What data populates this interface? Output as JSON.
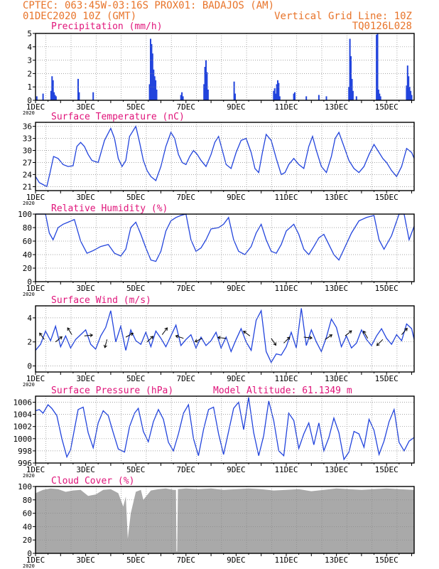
{
  "header": {
    "line1": "CPTEC:   063:45W-03:16S   PROX01: BADAJOS (AM)",
    "date": "01DEC2020 10Z (GMT)",
    "grid_note": "Vertical Grid Line: 10Z",
    "code": "TQ0126L028",
    "model_altitude": "Model Altitude: 61.1349 m"
  },
  "colors": {
    "header": "#e8742a",
    "title": "#e0147a",
    "series": "#2244dd",
    "cloud": "#a9a9a9",
    "grid": "#888888"
  },
  "chart_data": [
    {
      "type": "bar",
      "title": "Precipitation (mm/h)",
      "x_tick_labels": [
        "1DEC",
        "3DEC",
        "5DEC",
        "7DEC",
        "9DEC",
        "11DEC",
        "13DEC",
        "15DEC"
      ],
      "x_range_days": [
        1,
        16.1
      ],
      "year_label": "2020",
      "ylim": [
        0,
        5
      ],
      "yticks": [
        0,
        1,
        2,
        3,
        4,
        5
      ],
      "grid": true,
      "x_day": [
        1.05,
        1.3,
        1.62,
        1.66,
        1.7,
        1.74,
        1.78,
        1.82,
        2.7,
        2.74,
        3.3,
        5.55,
        5.59,
        5.63,
        5.67,
        5.71,
        5.75,
        5.79,
        5.83,
        6.8,
        6.84,
        6.88,
        7.72,
        7.76,
        7.8,
        7.84,
        7.88,
        8.92,
        8.96,
        10.5,
        10.54,
        10.58,
        10.62,
        10.66,
        10.7,
        10.74,
        11.3,
        11.34,
        11.8,
        12.3,
        12.6,
        13.5,
        13.54,
        13.58,
        13.62,
        13.66,
        13.8,
        14.6,
        14.64,
        14.68,
        14.72,
        14.76,
        15.8,
        15.84,
        15.88,
        15.92,
        15.96,
        16.0
      ],
      "values": [
        0.3,
        0.5,
        0.7,
        1.8,
        1.5,
        0.6,
        0.4,
        0.3,
        1.6,
        0.6,
        0.6,
        1.2,
        4.6,
        4.2,
        3.5,
        2.3,
        1.8,
        1.5,
        0.8,
        0.4,
        0.6,
        0.3,
        1.2,
        2.5,
        3.0,
        2.1,
        0.8,
        1.4,
        0.5,
        0.7,
        0.9,
        0.5,
        1.2,
        1.5,
        1.3,
        0.3,
        0.5,
        0.6,
        0.3,
        0.4,
        0.3,
        1.0,
        4.6,
        3.3,
        1.6,
        0.7,
        0.3,
        4.9,
        5.0,
        0.8,
        0.5,
        0.3,
        1.1,
        2.6,
        1.8,
        1.0,
        0.7,
        0.4
      ]
    },
    {
      "type": "line",
      "title": "Surface Temperature (nC)",
      "x_tick_labels": [
        "1DEC",
        "3DEC",
        "5DEC",
        "7DEC",
        "9DEC",
        "11DEC",
        "13DEC",
        "15DEC"
      ],
      "year_label": "2020",
      "ylim": [
        20,
        37
      ],
      "yticks": [
        21,
        24,
        27,
        30,
        33,
        36
      ],
      "grid": true,
      "x_day": [
        1.0,
        1.15,
        1.3,
        1.45,
        1.58,
        1.72,
        1.9,
        2.1,
        2.3,
        2.5,
        2.65,
        2.8,
        2.95,
        3.1,
        3.25,
        3.5,
        3.75,
        4.0,
        4.15,
        4.3,
        4.45,
        4.6,
        4.75,
        5.0,
        5.15,
        5.3,
        5.45,
        5.6,
        5.8,
        6.0,
        6.2,
        6.4,
        6.55,
        6.7,
        6.85,
        7.0,
        7.15,
        7.3,
        7.45,
        7.6,
        7.8,
        8.0,
        8.15,
        8.3,
        8.45,
        8.6,
        8.8,
        9.0,
        9.2,
        9.4,
        9.6,
        9.75,
        9.9,
        10.05,
        10.2,
        10.4,
        10.6,
        10.8,
        10.95,
        11.1,
        11.3,
        11.5,
        11.7,
        11.9,
        12.05,
        12.2,
        12.4,
        12.6,
        12.8,
        12.95,
        13.1,
        13.3,
        13.5,
        13.7,
        13.9,
        14.1,
        14.3,
        14.5,
        14.7,
        14.85,
        15.0,
        15.2,
        15.4,
        15.6,
        15.8,
        16.0,
        16.1
      ],
      "values": [
        23.5,
        22.0,
        21.5,
        21.0,
        24.5,
        28.5,
        28.0,
        26.5,
        26.0,
        26.2,
        31.0,
        32.0,
        31.0,
        29.0,
        27.5,
        27.0,
        32.5,
        35.5,
        33.0,
        28.0,
        26.0,
        27.5,
        33.5,
        36.0,
        32.0,
        27.5,
        25.0,
        23.5,
        22.5,
        26.0,
        31.0,
        34.5,
        33.0,
        29.0,
        27.0,
        26.5,
        28.5,
        30.0,
        29.0,
        27.5,
        26.0,
        29.0,
        32.0,
        33.5,
        30.0,
        26.5,
        25.5,
        29.5,
        32.5,
        33.0,
        29.5,
        25.5,
        24.5,
        29.5,
        34.0,
        32.5,
        28.0,
        24.0,
        24.5,
        26.5,
        28.0,
        26.5,
        25.5,
        31.0,
        33.5,
        30.0,
        26.0,
        24.5,
        28.5,
        33.0,
        34.5,
        31.0,
        27.5,
        25.5,
        24.5,
        26.0,
        29.0,
        31.5,
        29.5,
        28.0,
        27.0,
        25.0,
        23.5,
        26.0,
        30.5,
        29.5,
        28.0
      ]
    },
    {
      "type": "line",
      "title": "Relative Humidity (%)",
      "x_tick_labels": [
        "1DEC",
        "3DEC",
        "5DEC",
        "7DEC",
        "9DEC",
        "11DEC",
        "13DEC",
        "15DEC"
      ],
      "year_label": "2020",
      "ylim": [
        0,
        100
      ],
      "yticks": [
        0,
        20,
        40,
        60,
        80,
        100
      ],
      "grid": true,
      "x_day": [
        1.0,
        1.4,
        1.55,
        1.7,
        1.9,
        2.1,
        2.3,
        2.55,
        2.8,
        3.05,
        3.3,
        3.6,
        3.9,
        4.15,
        4.4,
        4.6,
        4.8,
        5.0,
        5.2,
        5.4,
        5.6,
        5.8,
        6.0,
        6.2,
        6.4,
        6.6,
        6.8,
        7.0,
        7.2,
        7.4,
        7.6,
        7.8,
        8.0,
        8.3,
        8.5,
        8.7,
        8.9,
        9.1,
        9.35,
        9.6,
        9.8,
        10.0,
        10.2,
        10.4,
        10.6,
        10.8,
        11.0,
        11.3,
        11.5,
        11.7,
        11.9,
        12.1,
        12.3,
        12.5,
        12.7,
        12.9,
        13.1,
        13.3,
        13.6,
        13.9,
        14.2,
        14.5,
        14.7,
        14.9,
        15.2,
        15.5,
        15.7,
        15.9,
        16.1
      ],
      "values": [
        100,
        100,
        72,
        62,
        80,
        85,
        88,
        92,
        60,
        42,
        46,
        52,
        55,
        42,
        38,
        48,
        80,
        88,
        70,
        50,
        32,
        30,
        45,
        75,
        90,
        95,
        98,
        100,
        62,
        45,
        50,
        62,
        78,
        80,
        85,
        95,
        62,
        45,
        40,
        52,
        72,
        85,
        62,
        45,
        42,
        55,
        75,
        85,
        70,
        48,
        40,
        52,
        65,
        70,
        55,
        40,
        32,
        48,
        72,
        90,
        95,
        98,
        62,
        48,
        68,
        100,
        100,
        62,
        82
      ]
    },
    {
      "type": "line",
      "title": "Surface Wind (m/s)",
      "x_tick_labels": [
        "1DEC",
        "3DEC",
        "5DEC",
        "7DEC",
        "9DEC",
        "11DEC",
        "13DEC",
        "15DEC"
      ],
      "year_label": "2020",
      "ylim": [
        -0.5,
        5
      ],
      "yticks": [
        0,
        2,
        4
      ],
      "grid": true,
      "x_day": [
        1.0,
        1.2,
        1.4,
        1.6,
        1.8,
        2.0,
        2.2,
        2.4,
        2.6,
        2.8,
        3.0,
        3.2,
        3.4,
        3.6,
        3.8,
        4.0,
        4.2,
        4.4,
        4.6,
        4.8,
        5.0,
        5.2,
        5.4,
        5.6,
        5.8,
        6.0,
        6.2,
        6.4,
        6.6,
        6.8,
        7.0,
        7.2,
        7.4,
        7.6,
        7.8,
        8.0,
        8.2,
        8.4,
        8.6,
        8.8,
        9.0,
        9.2,
        9.4,
        9.6,
        9.8,
        10.0,
        10.2,
        10.4,
        10.6,
        10.8,
        11.0,
        11.2,
        11.4,
        11.6,
        11.8,
        12.0,
        12.2,
        12.4,
        12.6,
        12.8,
        13.0,
        13.2,
        13.4,
        13.6,
        13.8,
        14.0,
        14.2,
        14.4,
        14.6,
        14.8,
        15.0,
        15.2,
        15.4,
        15.6,
        15.8,
        16.0,
        16.1
      ],
      "values": [
        1.3,
        1.8,
        2.9,
        2.1,
        3.3,
        1.6,
        2.5,
        1.5,
        2.2,
        2.6,
        3.0,
        1.8,
        1.4,
        2.5,
        3.2,
        4.6,
        2.0,
        3.3,
        1.3,
        3.0,
        2.1,
        1.8,
        2.8,
        1.6,
        2.9,
        2.3,
        1.6,
        2.5,
        3.4,
        1.7,
        2.2,
        2.6,
        1.5,
        2.4,
        1.7,
        2.1,
        2.8,
        1.5,
        2.4,
        1.2,
        2.2,
        3.1,
        2.0,
        1.3,
        3.8,
        4.6,
        1.2,
        0.3,
        1.0,
        0.9,
        1.6,
        2.8,
        1.5,
        4.8,
        1.7,
        3.0,
        2.0,
        1.2,
        2.4,
        3.9,
        3.2,
        1.6,
        2.5,
        1.5,
        1.9,
        3.0,
        2.2,
        1.7,
        2.5,
        3.1,
        2.3,
        1.8,
        2.6,
        2.1,
        3.5,
        3.1,
        2.2
      ],
      "arrows": [
        {
          "day": 1.35,
          "speed": 2.2,
          "dx": -0.55,
          "dy": 0.75
        },
        {
          "day": 1.8,
          "speed": 2.0,
          "dx": 0.75,
          "dy": 0.6
        },
        {
          "day": 2.45,
          "speed": 2.6,
          "dx": -0.5,
          "dy": 0.8
        },
        {
          "day": 2.95,
          "speed": 2.5,
          "dx": 0.95,
          "dy": 0.1
        },
        {
          "day": 3.85,
          "speed": 2.2,
          "dx": -0.25,
          "dy": -0.95
        },
        {
          "day": 4.6,
          "speed": 2.4,
          "dx": 0.85,
          "dy": 0.45
        },
        {
          "day": 5.45,
          "speed": 2.0,
          "dx": 0.7,
          "dy": 0.65
        },
        {
          "day": 6.05,
          "speed": 2.6,
          "dx": 0.6,
          "dy": 0.8
        },
        {
          "day": 6.9,
          "speed": 2.3,
          "dx": -0.9,
          "dy": 0.3
        },
        {
          "day": 7.65,
          "speed": 2.3,
          "dx": -0.85,
          "dy": -0.4
        },
        {
          "day": 8.6,
          "speed": 2.3,
          "dx": -0.95,
          "dy": 0.1
        },
        {
          "day": 9.55,
          "speed": 2.5,
          "dx": -0.75,
          "dy": 0.55
        },
        {
          "day": 10.4,
          "speed": 2.3,
          "dx": 0.55,
          "dy": -0.8
        },
        {
          "day": 10.9,
          "speed": 1.9,
          "dx": 0.7,
          "dy": 0.7
        },
        {
          "day": 11.7,
          "speed": 2.4,
          "dx": 0.95,
          "dy": -0.1
        },
        {
          "day": 12.55,
          "speed": 2.2,
          "dx": 0.8,
          "dy": 0.55
        },
        {
          "day": 13.35,
          "speed": 2.5,
          "dx": 0.75,
          "dy": 0.6
        },
        {
          "day": 14.25,
          "speed": 2.3,
          "dx": -0.5,
          "dy": 0.85
        },
        {
          "day": 14.85,
          "speed": 2.2,
          "dx": -0.7,
          "dy": -0.7
        },
        {
          "day": 15.6,
          "speed": 2.6,
          "dx": 0.65,
          "dy": 0.75
        }
      ]
    },
    {
      "type": "line",
      "title": "Surface Pressure (hPa)",
      "x_tick_labels": [
        "1DEC",
        "3DEC",
        "5DEC",
        "7DEC",
        "9DEC",
        "11DEC",
        "13DEC",
        "15DEC"
      ],
      "year_label": "2020",
      "ylim": [
        996,
        1007
      ],
      "yticks": [
        996,
        998,
        1000,
        1002,
        1004,
        1006
      ],
      "grid": true,
      "x_day": [
        1.0,
        1.15,
        1.3,
        1.5,
        1.65,
        1.85,
        2.05,
        2.25,
        2.4,
        2.55,
        2.7,
        2.9,
        3.1,
        3.3,
        3.5,
        3.7,
        3.9,
        4.1,
        4.3,
        4.55,
        4.75,
        4.95,
        5.1,
        5.3,
        5.5,
        5.7,
        5.9,
        6.1,
        6.3,
        6.5,
        6.7,
        6.9,
        7.1,
        7.3,
        7.5,
        7.7,
        7.9,
        8.1,
        8.3,
        8.5,
        8.7,
        8.9,
        9.1,
        9.3,
        9.5,
        9.7,
        9.9,
        10.1,
        10.3,
        10.5,
        10.7,
        10.9,
        11.1,
        11.3,
        11.5,
        11.7,
        11.9,
        12.1,
        12.3,
        12.5,
        12.7,
        12.9,
        13.1,
        13.3,
        13.5,
        13.7,
        13.9,
        14.1,
        14.3,
        14.5,
        14.7,
        14.9,
        15.1,
        15.3,
        15.5,
        15.7,
        15.9,
        16.1
      ],
      "values": [
        1004.6,
        1004.8,
        1004.2,
        1005.6,
        1005.0,
        1003.8,
        1000.0,
        997.0,
        998.2,
        1001.5,
        1004.8,
        1005.2,
        1001.0,
        998.5,
        1002.6,
        1004.6,
        1003.8,
        1001.0,
        998.3,
        997.8,
        1002.0,
        1004.2,
        1005.0,
        1001.2,
        999.5,
        1002.8,
        1004.8,
        1003.2,
        999.4,
        998.0,
        1000.8,
        1004.2,
        1005.6,
        1000.0,
        997.2,
        1001.5,
        1004.8,
        1005.2,
        1000.8,
        997.4,
        1001.2,
        1005.0,
        1006.0,
        1001.5,
        1006.8,
        1001.0,
        997.2,
        1000.5,
        1006.2,
        1003.0,
        998.0,
        997.2,
        1004.2,
        1003.0,
        998.4,
        1000.8,
        1002.6,
        999.0,
        1002.6,
        998.0,
        1000.2,
        1003.4,
        1001.0,
        996.6,
        997.8,
        1001.2,
        1000.8,
        998.6,
        1003.2,
        1001.4,
        997.4,
        999.6,
        1002.8,
        1004.8,
        999.4,
        998.0,
        999.6,
        1000.2
      ]
    },
    {
      "type": "area",
      "title": "Cloud Cover (%)",
      "x_tick_labels": [
        "1DEC",
        "3DEC",
        "5DEC",
        "7DEC",
        "9DEC",
        "11DEC",
        "13DEC",
        "15DEC"
      ],
      "year_label": "2020",
      "ylim": [
        0,
        100
      ],
      "yticks": [
        0,
        20,
        40,
        60,
        80,
        100
      ],
      "grid": true,
      "x_day": [
        1.0,
        1.3,
        1.6,
        1.9,
        2.2,
        2.5,
        2.8,
        3.1,
        3.4,
        3.7,
        4.0,
        4.3,
        4.5,
        4.6,
        4.68,
        4.8,
        5.0,
        5.2,
        5.3,
        5.6,
        5.9,
        6.2,
        6.5,
        6.6,
        6.62,
        6.65,
        6.68,
        7.0,
        7.5,
        8.0,
        8.5,
        9.0,
        9.5,
        10.0,
        10.5,
        11.0,
        11.5,
        12.0,
        12.5,
        13.0,
        13.5,
        14.0,
        14.5,
        15.0,
        15.5,
        16.1
      ],
      "values": [
        90,
        95,
        97,
        96,
        92,
        94,
        95,
        86,
        88,
        95,
        96,
        90,
        70,
        85,
        22,
        60,
        92,
        95,
        80,
        94,
        96,
        97,
        95,
        95,
        3,
        3,
        96,
        97,
        96,
        97,
        95,
        96,
        97,
        96,
        94,
        95,
        96,
        93,
        95,
        97,
        96,
        95,
        96,
        97,
        96,
        95
      ]
    }
  ]
}
